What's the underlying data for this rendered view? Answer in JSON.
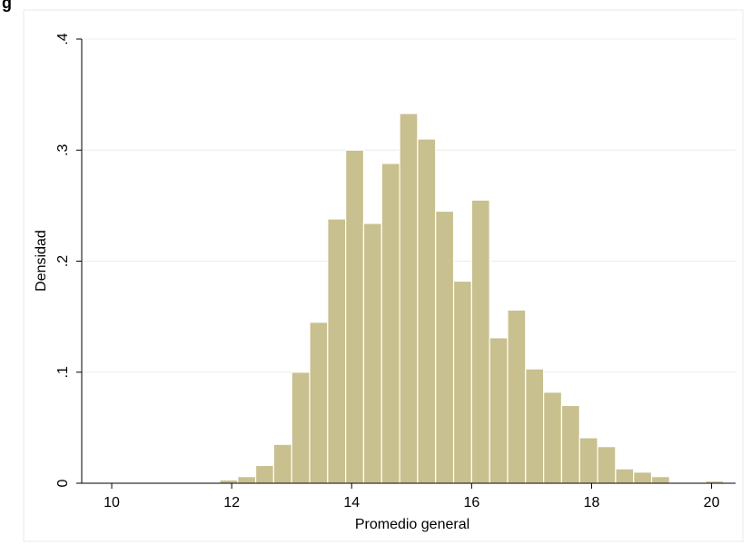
{
  "header": {
    "text": "g"
  },
  "chart_data": {
    "type": "bar",
    "histogram": true,
    "title": "",
    "xlabel": "Promedio general",
    "ylabel": "Densidad",
    "xlim": [
      9.5,
      20.4
    ],
    "ylim": [
      0,
      0.4
    ],
    "x_ticks": [
      10,
      12,
      14,
      16,
      18,
      20
    ],
    "x_tick_labels": [
      "10",
      "12",
      "14",
      "16",
      "18",
      "20"
    ],
    "y_ticks": [
      0,
      0.1,
      0.2,
      0.3,
      0.4
    ],
    "y_tick_labels": [
      "0",
      ".1",
      ".2",
      ".3",
      ".4"
    ],
    "grid": true,
    "bar_color": "#c8c08e",
    "bar_edge_color": "#ffffff",
    "bins": [
      {
        "x0": 10.9,
        "x1": 11.2,
        "density": 0.001
      },
      {
        "x0": 11.2,
        "x1": 11.5,
        "density": 0.001
      },
      {
        "x0": 11.5,
        "x1": 11.8,
        "density": 0.001
      },
      {
        "x0": 11.8,
        "x1": 12.1,
        "density": 0.003
      },
      {
        "x0": 12.1,
        "x1": 12.4,
        "density": 0.006
      },
      {
        "x0": 12.4,
        "x1": 12.7,
        "density": 0.016
      },
      {
        "x0": 12.7,
        "x1": 13.0,
        "density": 0.035
      },
      {
        "x0": 13.0,
        "x1": 13.3,
        "density": 0.1
      },
      {
        "x0": 13.3,
        "x1": 13.6,
        "density": 0.145
      },
      {
        "x0": 13.6,
        "x1": 13.9,
        "density": 0.238
      },
      {
        "x0": 13.9,
        "x1": 14.2,
        "density": 0.3
      },
      {
        "x0": 14.2,
        "x1": 14.5,
        "density": 0.234
      },
      {
        "x0": 14.5,
        "x1": 14.8,
        "density": 0.288
      },
      {
        "x0": 14.8,
        "x1": 15.1,
        "density": 0.333
      },
      {
        "x0": 15.1,
        "x1": 15.4,
        "density": 0.31
      },
      {
        "x0": 15.4,
        "x1": 15.7,
        "density": 0.245
      },
      {
        "x0": 15.7,
        "x1": 16.0,
        "density": 0.182
      },
      {
        "x0": 16.0,
        "x1": 16.3,
        "density": 0.255
      },
      {
        "x0": 16.3,
        "x1": 16.6,
        "density": 0.131
      },
      {
        "x0": 16.6,
        "x1": 16.9,
        "density": 0.156
      },
      {
        "x0": 16.9,
        "x1": 17.2,
        "density": 0.103
      },
      {
        "x0": 17.2,
        "x1": 17.5,
        "density": 0.082
      },
      {
        "x0": 17.5,
        "x1": 17.8,
        "density": 0.07
      },
      {
        "x0": 17.8,
        "x1": 18.1,
        "density": 0.041
      },
      {
        "x0": 18.1,
        "x1": 18.4,
        "density": 0.033
      },
      {
        "x0": 18.4,
        "x1": 18.7,
        "density": 0.013
      },
      {
        "x0": 18.7,
        "x1": 19.0,
        "density": 0.01
      },
      {
        "x0": 19.0,
        "x1": 19.3,
        "density": 0.006
      },
      {
        "x0": 19.3,
        "x1": 19.6,
        "density": 0.001
      },
      {
        "x0": 19.6,
        "x1": 19.9,
        "density": 0.001
      },
      {
        "x0": 19.9,
        "x1": 20.2,
        "density": 0.002
      }
    ]
  }
}
